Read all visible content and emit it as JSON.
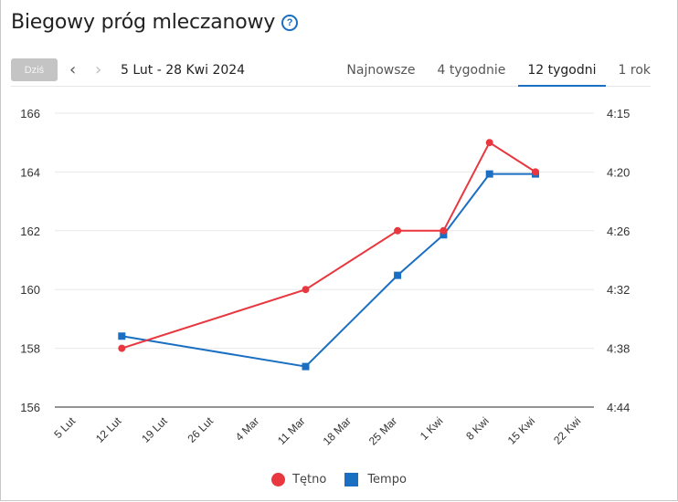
{
  "header": {
    "title": "Biegowy próg mleczanowy",
    "help_icon": "question-circle-icon"
  },
  "toolbar": {
    "today_label": "Dziś",
    "prev_icon": "‹",
    "next_icon": "›",
    "date_range": "5 Lut - 28 Kwi 2024",
    "tabs": [
      {
        "label": "Najnowsze",
        "active": false
      },
      {
        "label": "4 tygodnie",
        "active": false
      },
      {
        "label": "12 tygodni",
        "active": true
      },
      {
        "label": "1 rok",
        "active": false
      }
    ]
  },
  "colors": {
    "heart_rate": "#e8373e",
    "pace": "#1a6fc2",
    "accent": "#1a6fc2"
  },
  "legend": {
    "heart_rate_label": "Tętno",
    "pace_label": "Tempo"
  },
  "chart_data": {
    "type": "line",
    "title": "Biegowy próg mleczanowy",
    "categories": [
      "5 Lut",
      "12 Lut",
      "19 Lut",
      "26 Lut",
      "4 Mar",
      "11 Mar",
      "18 Mar",
      "25 Mar",
      "1 Kwi",
      "8 Kwi",
      "15 Kwi",
      "22 Kwi"
    ],
    "y_left": {
      "label": "Tętno",
      "ticks": [
        156,
        158,
        160,
        162,
        164,
        166
      ],
      "range": [
        156,
        166
      ]
    },
    "y_right": {
      "label": "Tempo",
      "ticks": [
        "4:44",
        "4:38",
        "4:32",
        "4:26",
        "4:20",
        "4:15"
      ]
    },
    "series": [
      {
        "name": "Tętno",
        "axis": "left",
        "marker": "circle",
        "points": [
          {
            "x": "12 Lut",
            "y": 158
          },
          {
            "x": "11 Mar",
            "y": 160
          },
          {
            "x": "25 Mar",
            "y": 162
          },
          {
            "x": "1 Kwi",
            "y": 162
          },
          {
            "x": "8 Kwi",
            "y": 165
          },
          {
            "x": "15 Kwi",
            "y": 164
          }
        ]
      },
      {
        "name": "Tempo",
        "axis": "right",
        "marker": "square",
        "points": [
          {
            "x": "12 Lut",
            "y": "4:37"
          },
          {
            "x": "11 Mar",
            "y": "4:40"
          },
          {
            "x": "25 Mar",
            "y": "4:31"
          },
          {
            "x": "1 Kwi",
            "y": "4:27"
          },
          {
            "x": "8 Kwi",
            "y": "4:21"
          },
          {
            "x": "15 Kwi",
            "y": "4:21"
          }
        ]
      }
    ],
    "grid": true,
    "legend_position": "bottom"
  }
}
